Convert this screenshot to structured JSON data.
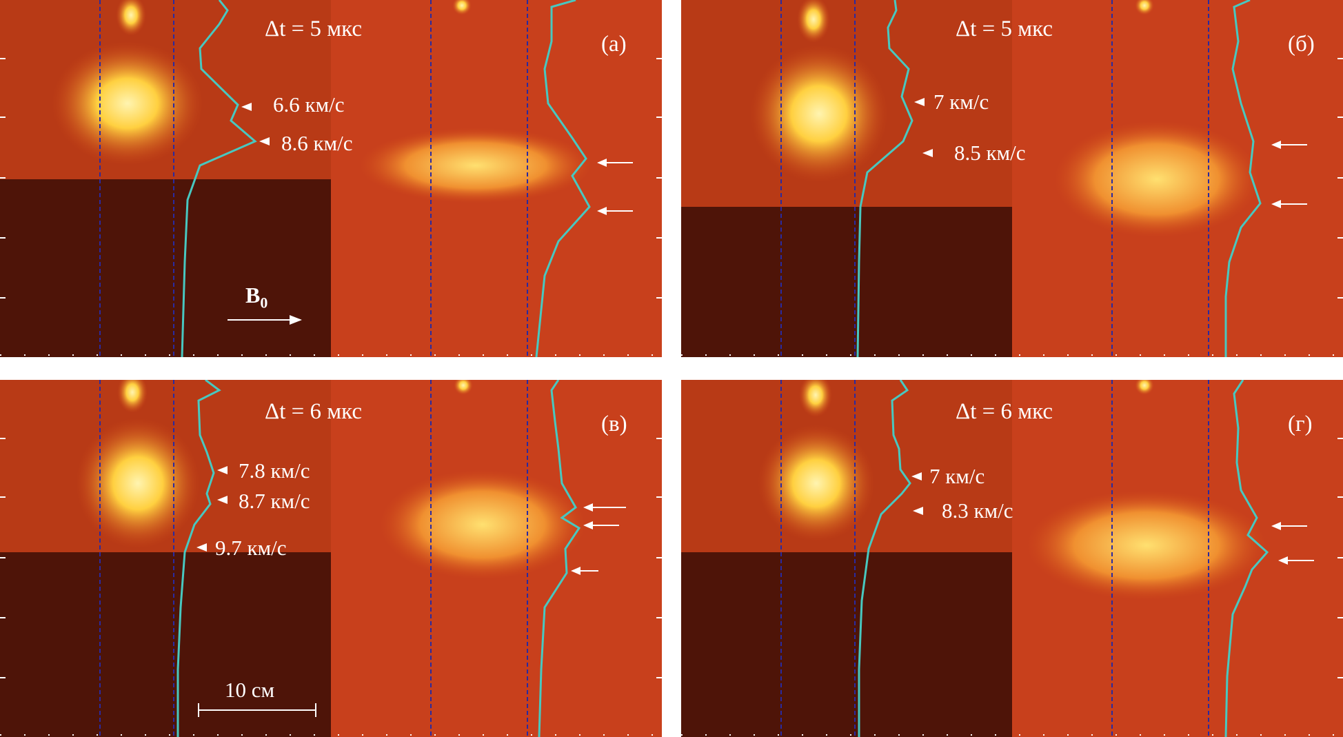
{
  "panels": [
    {
      "letter": "(а)",
      "delta_t": "Δt = 5 мкс",
      "velocities": [
        "6.6 км/с",
        "8.6 км/с"
      ],
      "field_label": "B",
      "field_sub": "0"
    },
    {
      "letter": "(б)",
      "delta_t": "Δt = 5 мкс",
      "velocities": [
        "7 км/с",
        "8.5 км/с"
      ]
    },
    {
      "letter": "(в)",
      "delta_t": "Δt = 6 мкс",
      "velocities": [
        "7.8 км/с",
        "8.7 км/с",
        "9.7 км/с"
      ],
      "scale_bar": "10 см"
    },
    {
      "letter": "(г)",
      "delta_t": "Δt = 6 мкс",
      "velocities": [
        "7 км/с",
        "8.3 км/с"
      ]
    }
  ],
  "colors": {
    "background_dark": "#3a0d08",
    "background_left": "#4a1208",
    "background_right": "#c8401c",
    "plume_glow": "#ffe060",
    "profile_curve": "#48c8c0",
    "guide_lines": "#2a2aa0",
    "annotation": "#ffffff"
  }
}
